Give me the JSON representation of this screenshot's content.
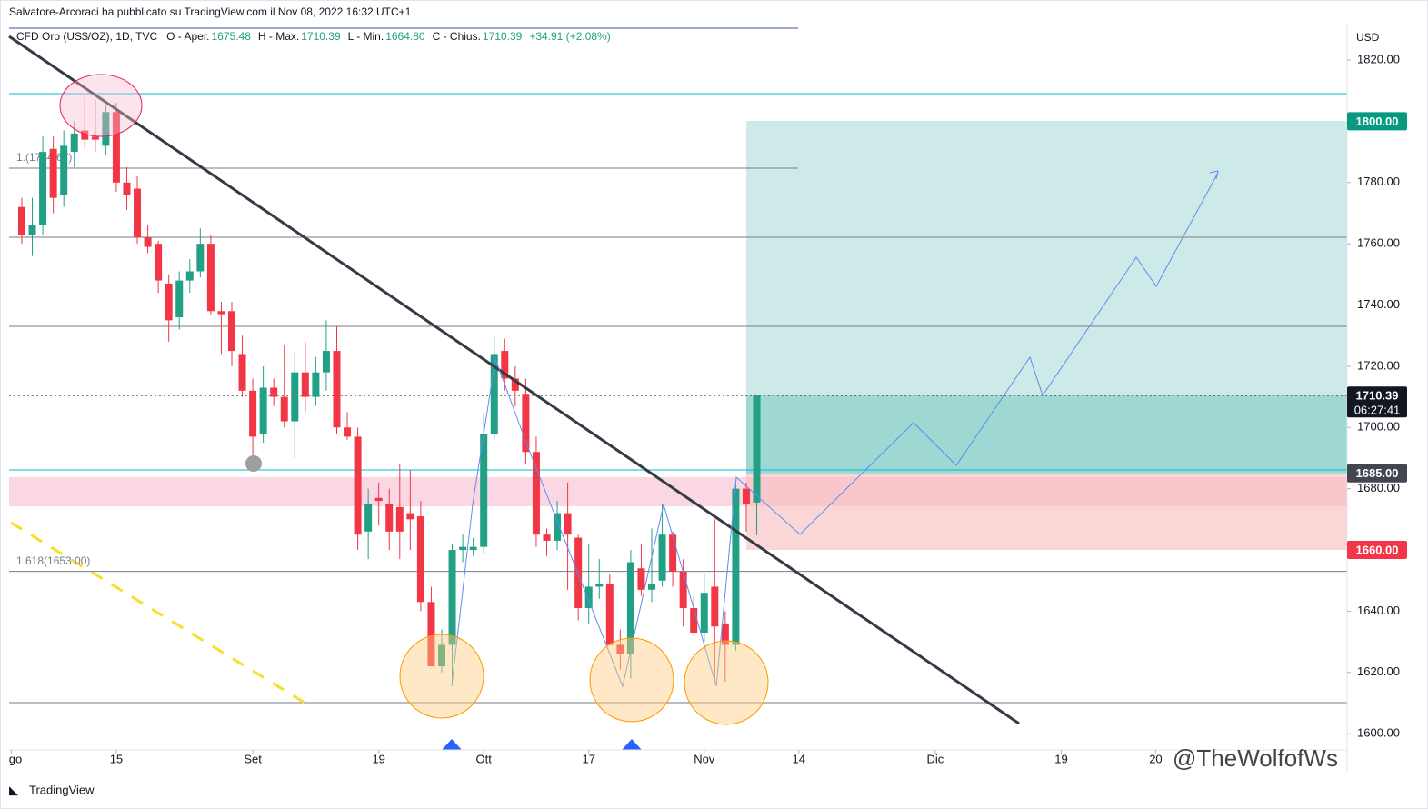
{
  "chart_data": {
    "type": "candlestick",
    "legend": {
      "publisher": "Salvatore-Arcoraci ha pubblicato su TradingView.com il Nov 08, 2022 16:32 UTC+1",
      "symbol": "CFD Oro (US$/OZ), 1D, TVC",
      "ohlc": [
        [
          "O - Aper.",
          "1675.48"
        ],
        [
          "H - Max.",
          "1710.39"
        ],
        [
          "L - Min.",
          "1664.80"
        ],
        [
          "C - Chius.",
          "1710.39"
        ]
      ],
      "change": "+34.91 (+2.08%)"
    },
    "currency": "USD",
    "up_color": "#22a085",
    "down_color": "#f23645",
    "open": [
      1772,
      1763,
      1766,
      1791,
      1776,
      1790,
      1797,
      1795,
      1792,
      1803,
      1780,
      1778,
      1762,
      1760,
      1747,
      1736,
      1748,
      1751,
      1760,
      1738,
      1738,
      1724,
      1712,
      1698,
      1713,
      1710,
      1702,
      1718,
      1710,
      1718,
      1725,
      1700,
      1697,
      1666,
      1677,
      1675,
      1674,
      1672,
      1671,
      1643,
      1622,
      1629,
      1660,
      1660,
      1661,
      1698,
      1725,
      1716,
      1711,
      1692,
      1665,
      1663,
      1672,
      1664,
      1641,
      1648,
      1649,
      1629,
      1626,
      1654,
      1647,
      1650,
      1665,
      1653,
      1641,
      1633,
      1648,
      1636,
      1629,
      1680,
      1675.48
    ],
    "high": [
      1775,
      1775,
      1795,
      1795,
      1797,
      1800,
      1808,
      1807,
      1805,
      1806,
      1785,
      1782,
      1766,
      1761,
      1750,
      1751,
      1755,
      1765,
      1763,
      1741,
      1741,
      1730,
      1716,
      1720,
      1716,
      1727,
      1725,
      1728,
      1723,
      1735,
      1733,
      1705,
      1700,
      1680,
      1682,
      1680,
      1688,
      1686,
      1676,
      1648,
      1634,
      1662,
      1665,
      1664,
      1705,
      1730,
      1729,
      1720,
      1716,
      1697,
      1667,
      1676,
      1682,
      1665,
      1662,
      1657,
      1652,
      1634,
      1660,
      1662,
      1667,
      1675,
      1666,
      1657,
      1645,
      1652,
      1670,
      1640,
      1682,
      1682,
      1710.39
    ],
    "low": [
      1760,
      1756,
      1763,
      1770,
      1772,
      1785,
      1791,
      1790,
      1789,
      1777,
      1771,
      1760,
      1757,
      1744,
      1728,
      1732,
      1744,
      1749,
      1737,
      1724,
      1720,
      1710,
      1690,
      1695,
      1707,
      1700,
      1690,
      1705,
      1707,
      1712,
      1698,
      1696,
      1660,
      1657,
      1668,
      1660,
      1657,
      1660,
      1640,
      1622,
      1620,
      1617,
      1656,
      1658,
      1659,
      1696,
      1712,
      1707,
      1688,
      1661,
      1658,
      1660,
      1647,
      1637,
      1636,
      1644,
      1630,
      1621,
      1618,
      1645,
      1643,
      1648,
      1648,
      1635,
      1632,
      1630,
      1617,
      1617,
      1627,
      1666,
      1664.8
    ],
    "close": [
      1763,
      1766,
      1790,
      1775,
      1792,
      1796,
      1794,
      1794,
      1803,
      1780,
      1776,
      1762,
      1759,
      1748,
      1735,
      1748,
      1751,
      1760,
      1738,
      1737,
      1725,
      1712,
      1697,
      1713,
      1710,
      1702,
      1718,
      1710,
      1718,
      1725,
      1700,
      1697,
      1665,
      1675,
      1676,
      1666,
      1666,
      1670,
      1643,
      1622,
      1629,
      1660,
      1661,
      1661,
      1698,
      1724,
      1716,
      1712,
      1692,
      1665,
      1663,
      1672,
      1665,
      1641,
      1648,
      1649,
      1629,
      1626,
      1656,
      1647,
      1649,
      1665,
      1653,
      1641,
      1633,
      1646,
      1635,
      1629,
      1680,
      1675,
      1710.39
    ],
    "xlim": [
      -1.21,
      126.23
    ],
    "xticks": [
      {
        "value": -1,
        "label": "go"
      },
      {
        "value": 9,
        "label": "15"
      },
      {
        "value": 22,
        "label": "Set"
      },
      {
        "value": 34,
        "label": "19"
      },
      {
        "value": 44,
        "label": "Ott"
      },
      {
        "value": 54,
        "label": "17"
      },
      {
        "value": 65,
        "label": "Nov"
      },
      {
        "value": 74,
        "label": "14"
      },
      {
        "value": 87,
        "label": "Dic"
      },
      {
        "value": 99,
        "label": "19"
      },
      {
        "value": 108,
        "label": "20"
      }
    ],
    "ylim": [
      1594.7,
      1830.7
    ],
    "yticks": [
      {
        "value": 1600,
        "label": "1600.00"
      },
      {
        "value": 1620,
        "label": "1620.00"
      },
      {
        "value": 1640,
        "label": "1640.00"
      },
      {
        "value": 1660,
        "label": "1660.00"
      },
      {
        "value": 1680,
        "label": "1680.00"
      },
      {
        "value": 1700,
        "label": "1700.00"
      },
      {
        "value": 1720,
        "label": "1720.00"
      },
      {
        "value": 1740,
        "label": "1740.00"
      },
      {
        "value": 1760,
        "label": "1760.00"
      },
      {
        "value": 1780,
        "label": "1780.00"
      },
      {
        "value": 1800,
        "label": "1800.00"
      },
      {
        "value": 1820,
        "label": "1820.00"
      }
    ],
    "fib_labels": [
      {
        "value": 1784.67,
        "label": "1.(1784.67)"
      },
      {
        "value": 1653,
        "label": "1.618(1653.00)"
      }
    ],
    "price_tags": [
      {
        "value": 1800,
        "label": "1800.00",
        "color": "#089981"
      },
      {
        "value": 1710.39,
        "label": "1710.39",
        "color": "#131722",
        "countdown": "06:27:41"
      },
      {
        "value": 1685,
        "label": "1685.00",
        "color": "#434651"
      },
      {
        "value": 1660,
        "label": "1660.00",
        "color": "#f23645"
      }
    ],
    "brand": "TradingView",
    "watermark": "@TheWolfofWs"
  }
}
